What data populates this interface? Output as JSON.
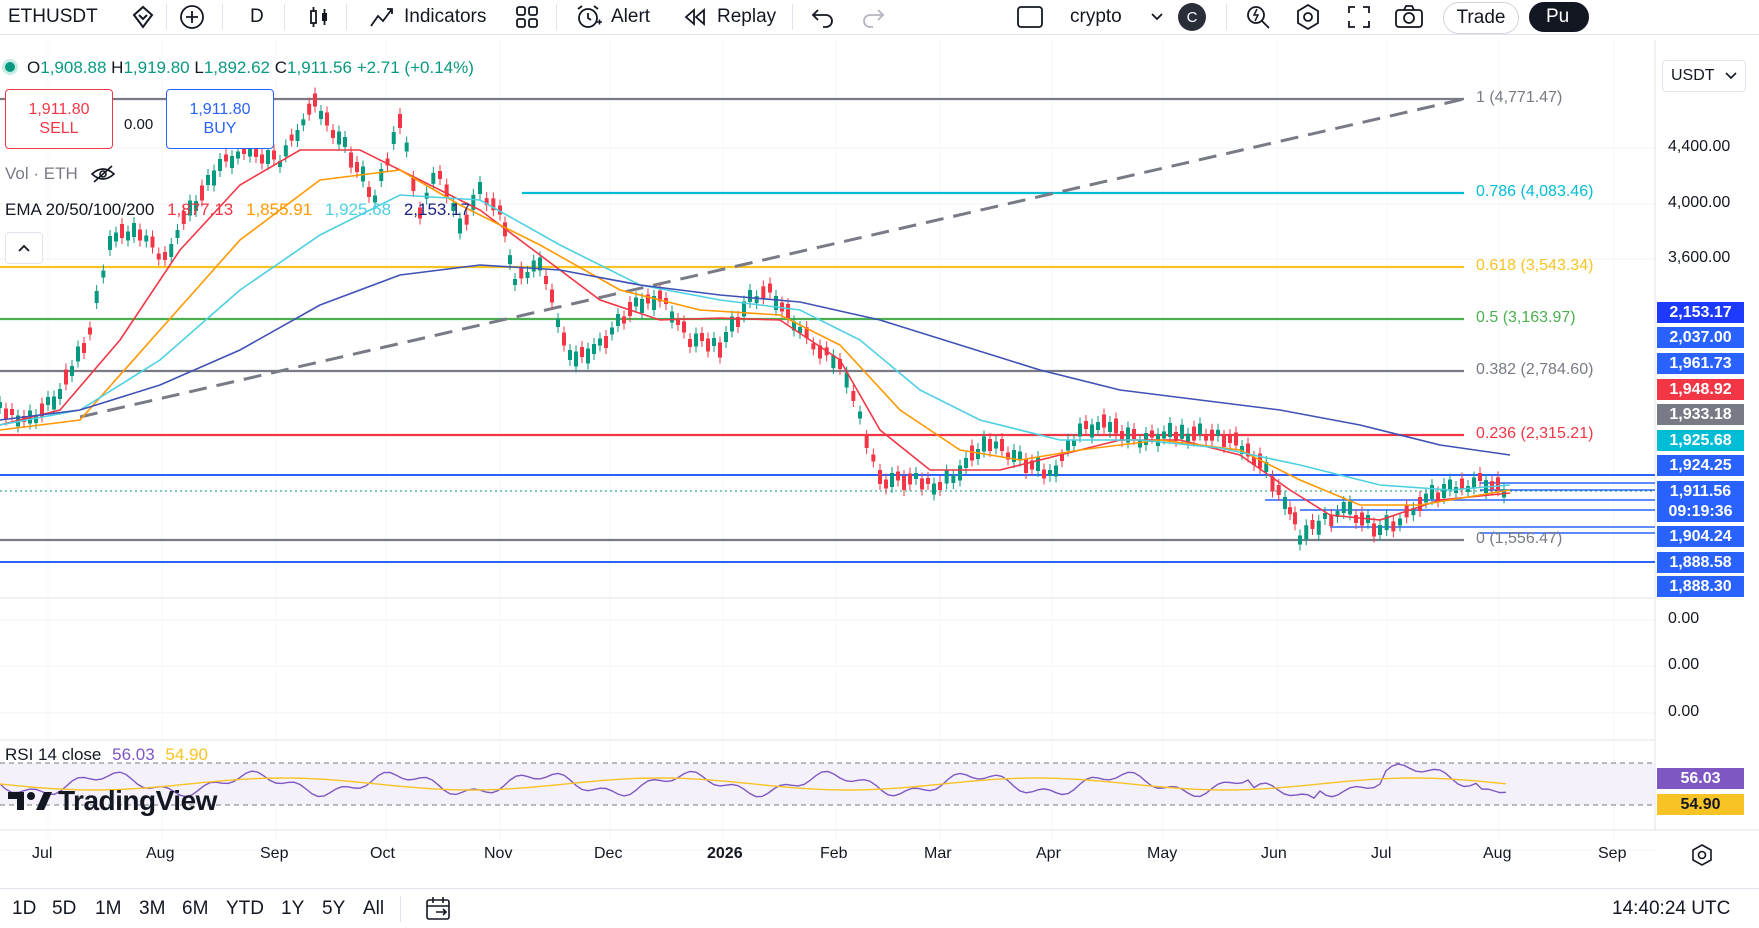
{
  "toolbar": {
    "symbol": "ETHUSDT",
    "interval": "D",
    "indicators": "Indicators",
    "alert": "Alert",
    "replay": "Replay",
    "layout_name": "crypto",
    "avatar_letter": "C",
    "trade": "Trade",
    "publish": "Pu"
  },
  "legend": {
    "open_label": "O",
    "open": "1,908.88",
    "high_label": "H",
    "high": "1,919.80",
    "low_label": "L",
    "low": "1,892.62",
    "close_label": "C",
    "close": "1,911.56",
    "change": "+2.71 (+0.14%)",
    "sell_price": "1,911.80",
    "sell_label": "SELL",
    "spread": "0.00",
    "buy_price": "1,911.80",
    "buy_label": "BUY",
    "vol_label": "Vol · ETH",
    "ema_label": "EMA 20/50/100/200",
    "ema20": "1,877.13",
    "ema50": "1,855.91",
    "ema100": "1,925.68",
    "ema200": "2,153.17",
    "rsi_label": "RSI 14 close",
    "rsi_value": "56.03",
    "rsi_ma": "54.90"
  },
  "currency": "USDT",
  "fib_levels": [
    {
      "label": "1 (4,771.47)",
      "color": "#787b86"
    },
    {
      "label": "0.786 (4,083.46)",
      "color": "#00bcd4"
    },
    {
      "label": "0.618 (3,543.34)",
      "color": "#f7c325"
    },
    {
      "label": "0.5 (3,163.97)",
      "color": "#4caf50"
    },
    {
      "label": "0.382 (2,784.60)",
      "color": "#787b86"
    },
    {
      "label": "0.236 (2,315.21)",
      "color": "#f23645"
    },
    {
      "label": "0 (1,556.47)",
      "color": "#787b86"
    }
  ],
  "price_axis": [
    "4,400.00",
    "4,000.00",
    "3,600.00",
    "0.00",
    "0.00",
    "0.00"
  ],
  "price_tags": [
    {
      "text": "2,153.17",
      "color": "#1e3aff"
    },
    {
      "text": "2,037.00",
      "color": "#2962ff"
    },
    {
      "text": "1,961.73",
      "color": "#2962ff"
    },
    {
      "text": "1,948.92",
      "color": "#f23645"
    },
    {
      "text": "1,933.18",
      "color": "#787b86"
    },
    {
      "text": "1,925.68",
      "color": "#00bcd4"
    },
    {
      "text": "1,924.25",
      "color": "#2962ff"
    },
    {
      "text": "1,911.56",
      "color": "#2962ff"
    },
    {
      "text": "09:19:36",
      "color": "#2962ff"
    },
    {
      "text": "1,904.24",
      "color": "#2962ff"
    },
    {
      "text": "1,888.58",
      "color": "#2962ff"
    },
    {
      "text": "1,888.30",
      "color": "#2962ff"
    }
  ],
  "rsi_tags": [
    {
      "text": "56.03",
      "color": "#7e57c2"
    },
    {
      "text": "54.90",
      "color": "#f7c325"
    }
  ],
  "time_axis": [
    "Jul",
    "Aug",
    "Sep",
    "Oct",
    "Nov",
    "Dec",
    "2026",
    "Feb",
    "Mar",
    "Apr",
    "May",
    "Jun",
    "Jul",
    "Aug",
    "Sep"
  ],
  "ranges": [
    "1D",
    "5D",
    "1M",
    "3M",
    "6M",
    "YTD",
    "1Y",
    "5Y",
    "All"
  ],
  "clock": "14:40:24 UTC",
  "brand": "TradingView"
}
